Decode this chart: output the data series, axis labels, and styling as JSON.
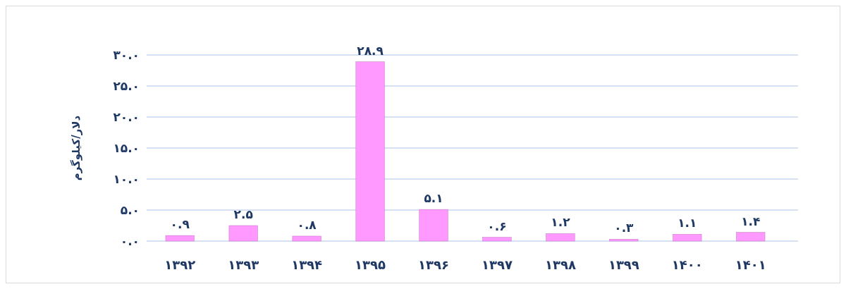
{
  "chart_data": {
    "type": "bar",
    "ylabel": "دلار/کیلوگرم",
    "categories": [
      "۱۳۹۲",
      "۱۳۹۳",
      "۱۳۹۴",
      "۱۳۹۵",
      "۱۳۹۶",
      "۱۳۹۷",
      "۱۳۹۸",
      "۱۳۹۹",
      "۱۴۰۰",
      "۱۴۰۱"
    ],
    "values": [
      0.9,
      2.5,
      0.8,
      28.9,
      5.1,
      0.6,
      1.2,
      0.3,
      1.1,
      1.4
    ],
    "value_labels": [
      "۰.۹",
      "۲.۵",
      "۰.۸",
      "۲۸.۹",
      "۵.۱",
      "۰.۶",
      "۱.۲",
      "۰.۳",
      "۱.۱",
      "۱.۴"
    ],
    "color": "#ff99ff",
    "ylim": [
      0,
      30
    ],
    "yticks": [
      {
        "value": 0,
        "label": "۰.۰"
      },
      {
        "value": 5,
        "label": "۵.۰"
      },
      {
        "value": 10,
        "label": "۱۰.۰"
      },
      {
        "value": 15,
        "label": "۱۵.۰"
      },
      {
        "value": 20,
        "label": "۲۰.۰"
      },
      {
        "value": 25,
        "label": "۲۵.۰"
      },
      {
        "value": 30,
        "label": "۳۰.۰"
      }
    ],
    "grid": "y"
  }
}
